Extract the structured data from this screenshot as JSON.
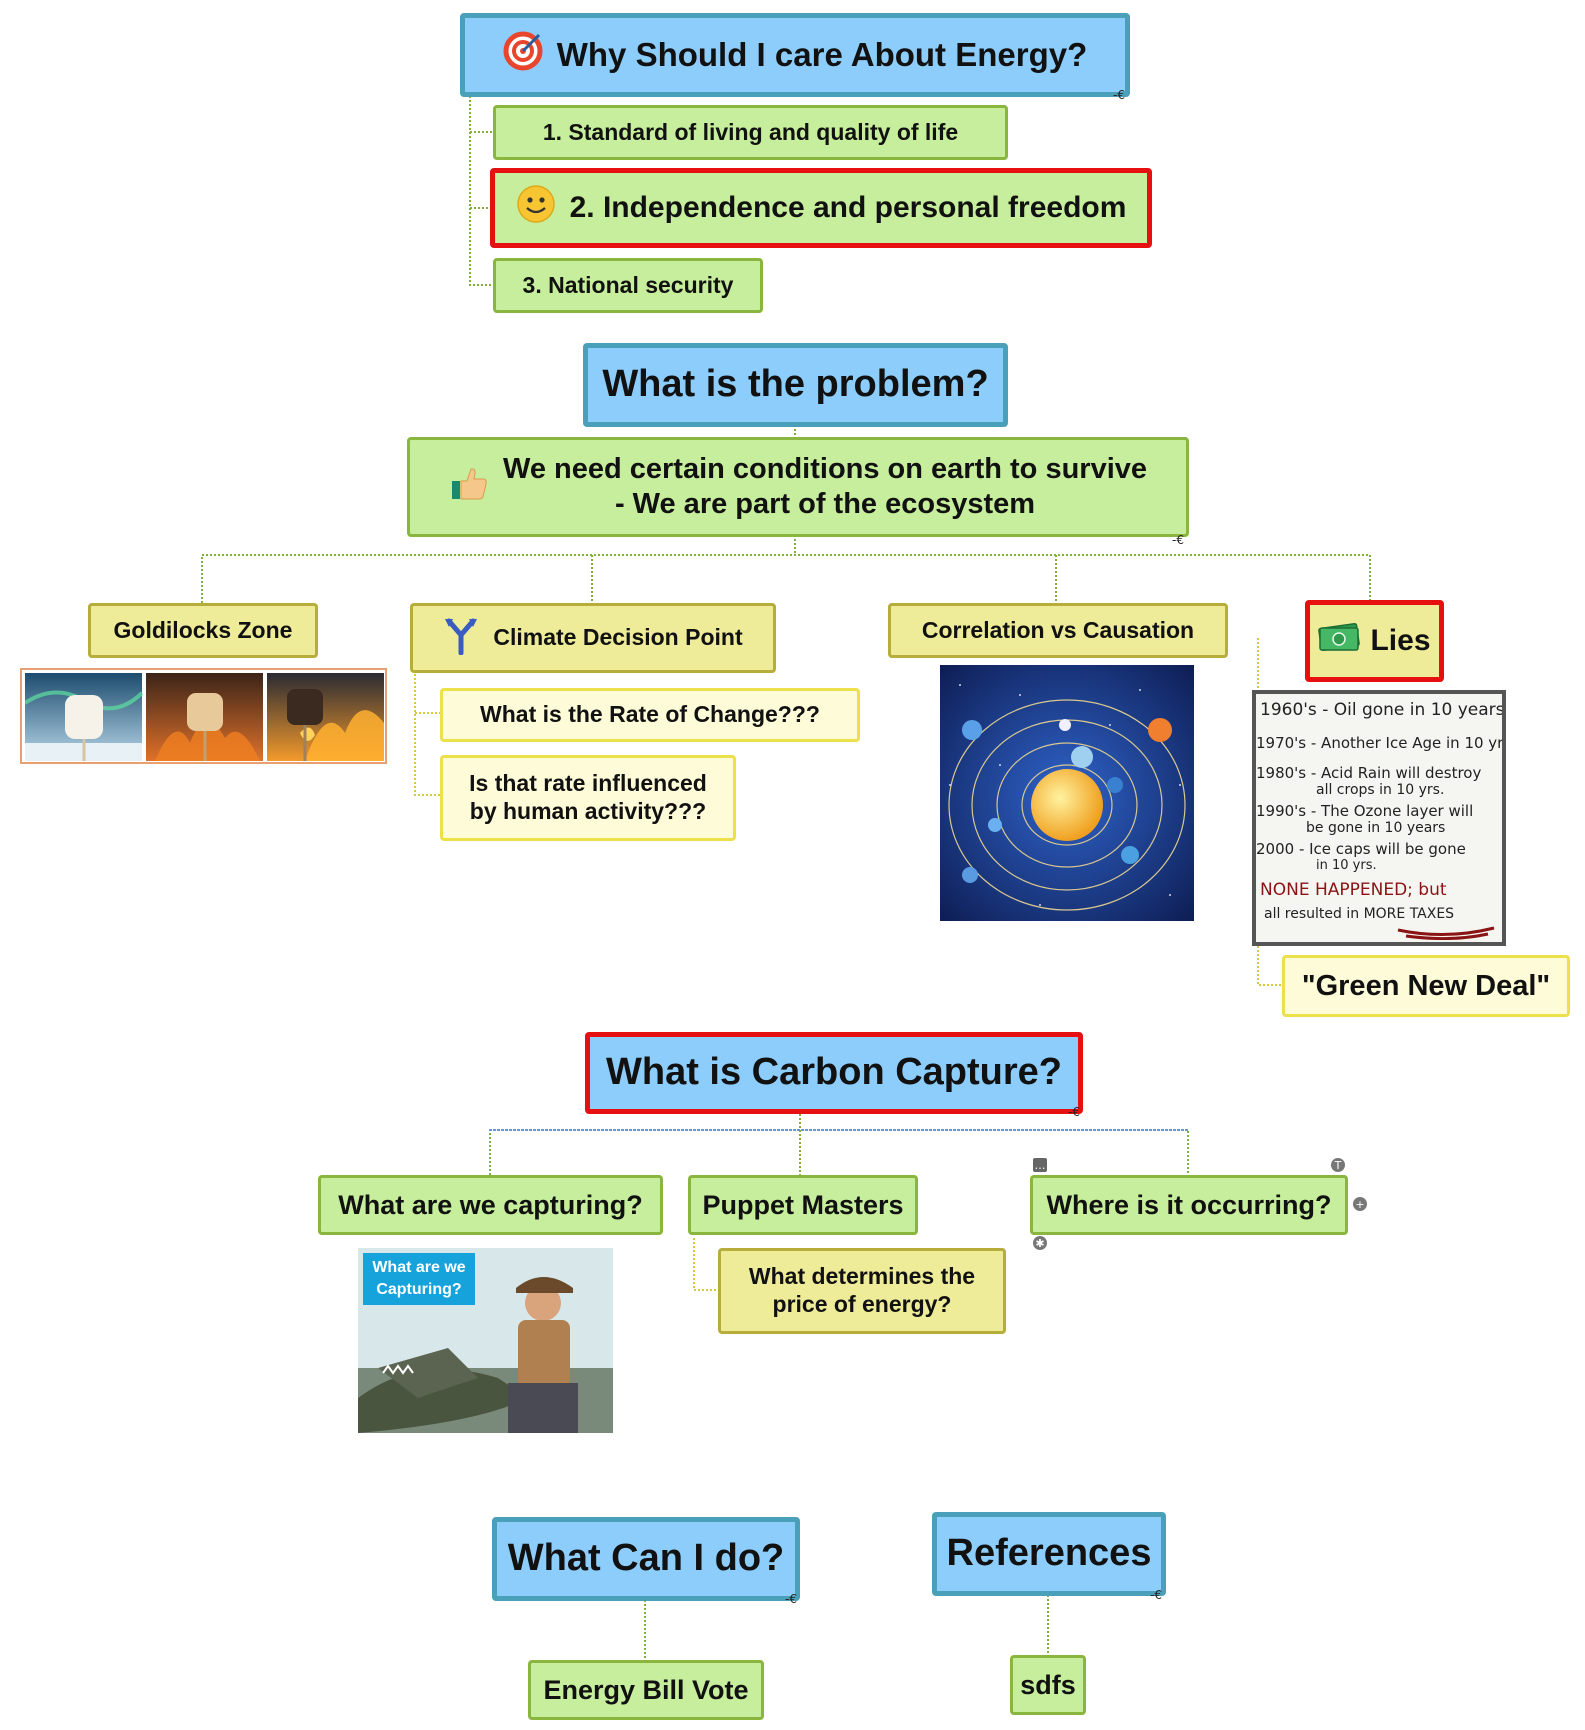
{
  "colors": {
    "topic_fill": "#8ccdfb",
    "topic_border": "#4aa0b8",
    "green_fill": "#c6ee9c",
    "khaki_fill": "#eeeb99",
    "yellow_fill": "#fdfbd8",
    "highlight_border": "#e61010"
  },
  "topics": {
    "energy": {
      "title": "Why Should I care About Energy?",
      "icon": "target-icon",
      "items": [
        "1. Standard of living and quality of life",
        "2. Independence and personal freedom",
        "3. National security"
      ],
      "item2_icon": "smiley-icon"
    },
    "problem": {
      "title": "What is the problem?",
      "statement_line1": "We need certain conditions on earth to survive",
      "statement_line2": "- We are part of the ecosystem",
      "statement_icon": "thumbs-up-icon",
      "branches": {
        "goldilocks": "Goldilocks Zone",
        "decision": "Climate Decision Point",
        "decision_icon": "fork-arrow-icon",
        "decision_q1": "What is the Rate of Change???",
        "decision_q2_line1": "Is that rate influenced",
        "decision_q2_line2": "by human activity???",
        "correlation": "Correlation vs Causation",
        "lies": "Lies",
        "lies_icon": "money-icon",
        "green_new_deal": "\"Green New Deal\""
      },
      "lies_note": [
        "1960's - Oil gone in 10 years",
        "1970's - Another Ice Age in 10 yrs.",
        "1980's - Acid Rain will destroy",
        "all crops in 10 yrs.",
        "1990's - The Ozone layer will",
        "be gone in 10 years",
        "2000 - Ice caps will be gone",
        "in 10 yrs.",
        "NONE HAPPENED; but",
        "all resulted in MORE TAXES"
      ]
    },
    "carbon": {
      "title": "What is Carbon Capture?",
      "capturing": "What are we capturing?",
      "photo_caption_line1": "What are we",
      "photo_caption_line2": "Capturing?",
      "puppet": "Puppet Masters",
      "price_line1": "What determines the",
      "price_line2": "price of energy?",
      "where": "Where is it occurring?"
    },
    "action": {
      "title": "What Can I do?",
      "child": "Energy Bill Vote"
    },
    "references": {
      "title": "References",
      "child": "sdfs"
    }
  }
}
